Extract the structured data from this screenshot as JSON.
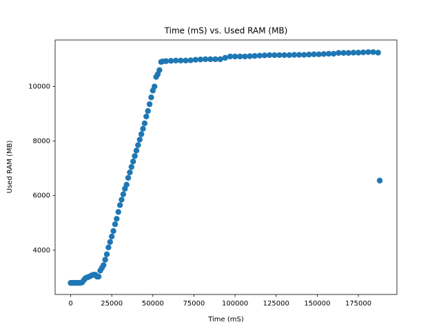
{
  "chart_data": {
    "type": "scatter",
    "title": "Time (mS) vs. Used RAM (MB)",
    "x_label": "Time (mS)",
    "y_label": "Used RAM (MB)",
    "color": "#1f77b4",
    "x": [
      0,
      1000,
      2000,
      3000,
      4000,
      5000,
      6000,
      7000,
      8000,
      9000,
      10000,
      11000,
      12000,
      13000,
      14000,
      15000,
      16000,
      17000,
      18000,
      19000,
      20000,
      21000,
      22000,
      23000,
      24000,
      25000,
      26000,
      27000,
      28000,
      29000,
      30000,
      31000,
      32000,
      33000,
      34000,
      35000,
      36000,
      37000,
      38000,
      39000,
      40000,
      41000,
      42000,
      43000,
      44000,
      45000,
      46000,
      47000,
      48000,
      49000,
      50000,
      51000,
      52000,
      53000,
      54000,
      55000,
      56000,
      58000,
      61000,
      64000,
      67000,
      70000,
      73000,
      76000,
      79000,
      82000,
      85000,
      88000,
      91000,
      94000,
      97000,
      100000,
      103000,
      106000,
      109000,
      112000,
      115000,
      118000,
      121000,
      124000,
      127000,
      130000,
      133000,
      136000,
      139000,
      142000,
      145000,
      148000,
      151000,
      154000,
      157000,
      160000,
      163000,
      166000,
      169000,
      172000,
      175000,
      178000,
      181000,
      184000,
      187000,
      188000
    ],
    "y": [
      2800,
      2800,
      2800,
      2800,
      2800,
      2800,
      2800,
      2820,
      2900,
      2970,
      3000,
      3020,
      3050,
      3080,
      3100,
      3100,
      3030,
      3030,
      3250,
      3350,
      3450,
      3650,
      3850,
      4100,
      4300,
      4500,
      4700,
      4950,
      5150,
      5400,
      5650,
      5850,
      6050,
      6250,
      6400,
      6650,
      6850,
      7050,
      7250,
      7450,
      7650,
      7850,
      8050,
      8250,
      8450,
      8650,
      8900,
      9100,
      9350,
      9600,
      9850,
      10000,
      10350,
      10450,
      10600,
      10900,
      10920,
      10930,
      10940,
      10950,
      10950,
      10950,
      10960,
      10980,
      10990,
      11000,
      11000,
      11000,
      11000,
      11050,
      11100,
      11100,
      11100,
      11100,
      11110,
      11120,
      11130,
      11140,
      11150,
      11150,
      11150,
      11150,
      11150,
      11160,
      11160,
      11160,
      11170,
      11180,
      11180,
      11190,
      11200,
      11200,
      11230,
      11230,
      11230,
      11240,
      11240,
      11250,
      11260,
      11260,
      11240,
      6550
    ],
    "xlim": [
      -9450,
      198450
    ],
    "ylim": [
      2376,
      11704
    ],
    "xticks": [
      0,
      25000,
      50000,
      75000,
      100000,
      125000,
      150000,
      175000
    ],
    "yticks": [
      4000,
      6000,
      8000,
      10000
    ]
  }
}
